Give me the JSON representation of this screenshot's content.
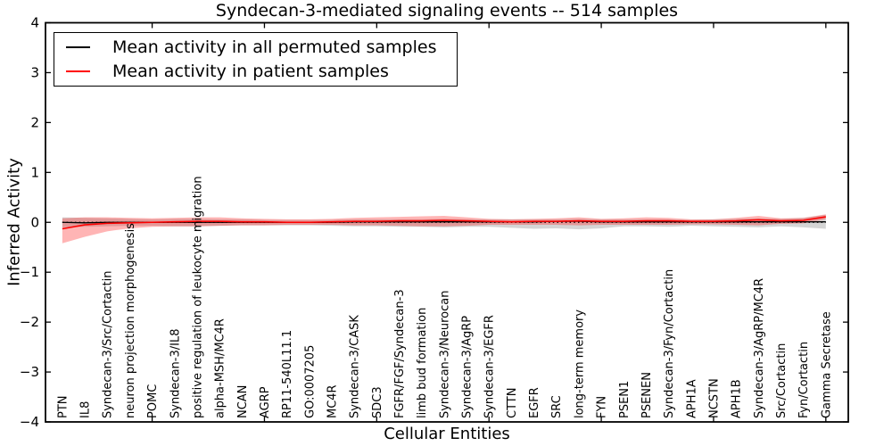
{
  "chart_data": {
    "type": "line",
    "title": "Syndecan-3-mediated signaling events -- 514 samples",
    "xlabel": "Cellular Entities",
    "ylabel": "Inferred Activity",
    "ylim": [
      -4,
      4
    ],
    "yticks": [
      -4,
      -3,
      -2,
      -1,
      0,
      1,
      2,
      3,
      4
    ],
    "xtick_positions": [
      5,
      10,
      15,
      20,
      25,
      30,
      35
    ],
    "grid": false,
    "zero_reference_line": "dotted",
    "legend_position": "upper left",
    "categories": [
      "PTN",
      "IL8",
      "Syndecan-3/Src/Cortactin",
      "neuron projection morphogenesis",
      "POMC",
      "Syndecan-3/IL8",
      "positive regulation of leukocyte migration",
      "alpha-MSH/MC4R",
      "NCAN",
      "AGRP",
      "RP11-540L11.1",
      "GO:0007205",
      "MC4R",
      "Syndecan-3/CASK",
      "SDC3",
      "FGFR/FGF/Syndecan-3",
      "limb bud formation",
      "Syndecan-3/Neurocan",
      "Syndecan-3/AgRP",
      "Syndecan-3/EGFR",
      "CTTN",
      "EGFR",
      "SRC",
      "long-term memory",
      "FYN",
      "PSEN1",
      "PSENEN",
      "Syndecan-3/Fyn/Cortactin",
      "APH1A",
      "NCSTN",
      "APH1B",
      "Syndecan-3/AgRP/MC4R",
      "Src/Cortactin",
      "Fyn/Cortactin",
      "Gamma Secretase"
    ],
    "series": [
      {
        "name": "Mean activity in all permuted samples",
        "color": "#000000",
        "band_color": "rgba(105,105,105,0.28)",
        "line_width": 1.3,
        "values": [
          0,
          -0.01,
          0,
          0,
          0,
          0,
          0,
          0,
          0,
          0,
          0,
          0,
          0,
          0.01,
          0.01,
          0.01,
          0.01,
          0.01,
          0.01,
          0.01,
          0.01,
          0.01,
          0.02,
          0.02,
          0.01,
          0.01,
          0.01,
          0.01,
          0.01,
          0.01,
          0.01,
          0.01,
          0.01,
          0.01,
          0.01
        ],
        "band_upper": [
          0.1,
          0.09,
          0.08,
          0.07,
          0.06,
          0.07,
          0.07,
          0.06,
          0.06,
          0.05,
          0.05,
          0.05,
          0.05,
          0.06,
          0.06,
          0.06,
          0.06,
          0.07,
          0.06,
          0.06,
          0.06,
          0.06,
          0.06,
          0.07,
          0.06,
          0.06,
          0.06,
          0.06,
          0.05,
          0.06,
          0.07,
          0.08,
          0.07,
          0.09,
          0.15
        ],
        "band_lower": [
          -0.1,
          -0.09,
          -0.08,
          -0.07,
          -0.07,
          -0.08,
          -0.08,
          -0.07,
          -0.06,
          -0.06,
          -0.06,
          -0.06,
          -0.07,
          -0.08,
          -0.08,
          -0.09,
          -0.09,
          -0.1,
          -0.09,
          -0.09,
          -0.11,
          -0.13,
          -0.12,
          -0.14,
          -0.12,
          -0.08,
          -0.08,
          -0.09,
          -0.07,
          -0.08,
          -0.09,
          -0.1,
          -0.08,
          -0.1,
          -0.13
        ]
      },
      {
        "name": "Mean activity in patient samples",
        "color": "#ff0000",
        "band_color": "rgba(255,30,30,0.33)",
        "line_width": 1.6,
        "values": [
          -0.13,
          -0.05,
          -0.02,
          -0.01,
          0,
          0.01,
          0.02,
          0.02,
          0.01,
          0.01,
          0,
          0,
          0.01,
          0.02,
          0.02,
          0.03,
          0.03,
          0.04,
          0.03,
          0.02,
          0.01,
          0.02,
          0.02,
          0.03,
          0.02,
          0.02,
          0.03,
          0.03,
          0.02,
          0.02,
          0.03,
          0.05,
          0.03,
          0.04,
          0.11
        ],
        "band_upper": [
          0.08,
          0.1,
          0.1,
          0.09,
          0.08,
          0.09,
          0.1,
          0.1,
          0.08,
          0.07,
          0.06,
          0.06,
          0.07,
          0.09,
          0.1,
          0.11,
          0.12,
          0.13,
          0.1,
          0.07,
          0.06,
          0.07,
          0.08,
          0.1,
          0.07,
          0.08,
          0.1,
          0.09,
          0.06,
          0.06,
          0.09,
          0.13,
          0.08,
          0.09,
          0.16
        ],
        "band_lower": [
          -0.42,
          -0.29,
          -0.18,
          -0.12,
          -0.09,
          -0.08,
          -0.08,
          -0.07,
          -0.06,
          -0.06,
          -0.05,
          -0.05,
          -0.05,
          -0.06,
          -0.06,
          -0.07,
          -0.08,
          -0.08,
          -0.07,
          -0.05,
          -0.05,
          -0.05,
          -0.05,
          -0.06,
          -0.05,
          -0.05,
          -0.05,
          -0.05,
          -0.04,
          -0.04,
          -0.05,
          -0.06,
          -0.03,
          -0.02,
          0.06
        ]
      }
    ]
  }
}
